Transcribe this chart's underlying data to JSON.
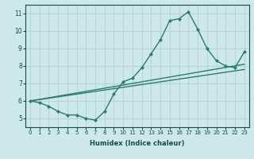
{
  "xlabel": "Humidex (Indice chaleur)",
  "background_color": "#cce8e8",
  "grid_color": "#b8d4d4",
  "line_color": "#2d7a6e",
  "xlim": [
    -0.5,
    23.5
  ],
  "ylim": [
    4.5,
    11.5
  ],
  "xticks": [
    0,
    1,
    2,
    3,
    4,
    5,
    6,
    7,
    8,
    9,
    10,
    11,
    12,
    13,
    14,
    15,
    16,
    17,
    18,
    19,
    20,
    21,
    22,
    23
  ],
  "yticks": [
    5,
    6,
    7,
    8,
    9,
    10,
    11
  ],
  "line1_x": [
    0,
    1,
    2,
    3,
    4,
    5,
    6,
    7,
    8,
    9,
    10,
    11,
    12,
    13,
    14,
    15,
    16,
    17,
    18,
    19,
    20,
    21,
    22,
    23
  ],
  "line1_y": [
    6.0,
    5.9,
    5.7,
    5.4,
    5.2,
    5.2,
    5.0,
    4.9,
    5.4,
    6.4,
    7.1,
    7.3,
    7.9,
    8.7,
    9.5,
    10.6,
    10.7,
    11.1,
    10.1,
    9.0,
    8.3,
    8.0,
    7.9,
    8.8
  ],
  "line2_x": [
    0,
    23
  ],
  "line2_y": [
    6.0,
    8.1
  ],
  "line3_x": [
    0,
    23
  ],
  "line3_y": [
    6.0,
    7.8
  ],
  "marker_size": 2.5,
  "line_width": 1.0
}
